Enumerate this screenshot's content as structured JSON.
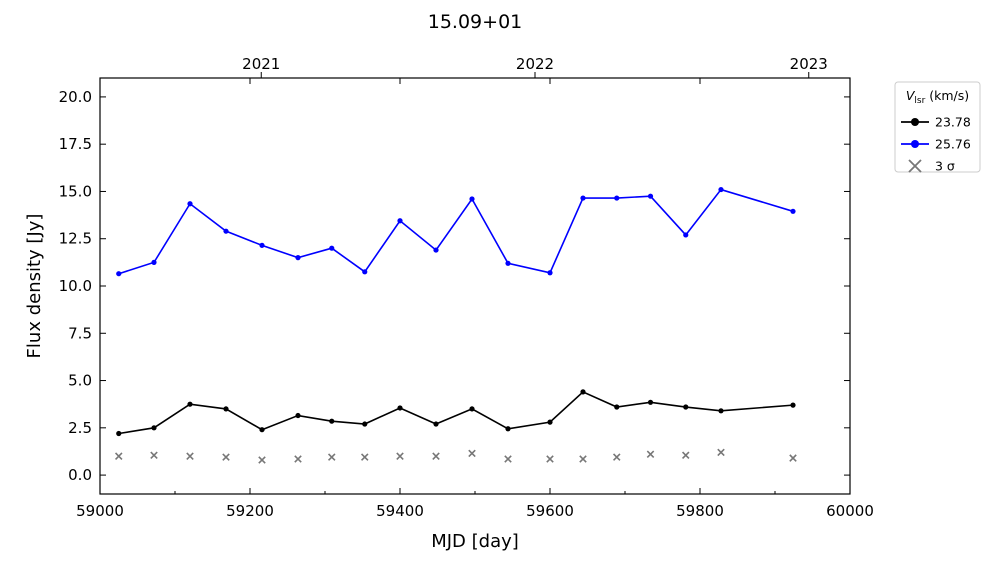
{
  "chart_data": {
    "type": "line",
    "title": "15.09+01",
    "xlabel": "MJD [day]",
    "ylabel": "Flux density [Jy]",
    "xlim": [
      59000,
      60000
    ],
    "ylim": [
      -1,
      21
    ],
    "x_ticks": [
      59000,
      59200,
      59400,
      59600,
      59800,
      60000
    ],
    "y_ticks": [
      0.0,
      2.5,
      5.0,
      7.5,
      10.0,
      12.5,
      15.0,
      17.5,
      20.0
    ],
    "y_tick_labels": [
      "0.0",
      "2.5",
      "5.0",
      "7.5",
      "10.0",
      "12.5",
      "15.0",
      "17.5",
      "20.0"
    ],
    "top_axis": {
      "labels": [
        "2021",
        "2022",
        "2023"
      ],
      "mjd": [
        59215,
        59580,
        59945
      ]
    },
    "grid": false,
    "legend": {
      "placement": "outside-top-right",
      "title_main": "V",
      "title_sub": "lsr",
      "title_unit": "(km/s)"
    },
    "series": [
      {
        "name": "23.78",
        "color": "#000000",
        "marker": "circle",
        "x": [
          59025,
          59072,
          59120,
          59168,
          59216,
          59264,
          59309,
          59353,
          59400,
          59448,
          59496,
          59544,
          59600,
          59644,
          59689,
          59734,
          59781,
          59828,
          59924
        ],
        "y": [
          2.2,
          2.5,
          3.75,
          3.5,
          2.4,
          3.15,
          2.85,
          2.7,
          3.55,
          2.7,
          3.5,
          2.45,
          2.8,
          4.4,
          3.6,
          3.85,
          3.6,
          3.4,
          3.7
        ]
      },
      {
        "name": "25.76",
        "color": "#0000ff",
        "marker": "circle",
        "x": [
          59025,
          59072,
          59120,
          59168,
          59216,
          59264,
          59309,
          59353,
          59400,
          59448,
          59496,
          59544,
          59600,
          59644,
          59689,
          59734,
          59781,
          59828,
          59924
        ],
        "y": [
          10.65,
          11.25,
          14.35,
          12.9,
          12.15,
          11.5,
          12.0,
          10.75,
          13.45,
          11.9,
          14.6,
          11.2,
          10.7,
          14.65,
          14.65,
          14.75,
          12.7,
          15.1,
          13.95
        ]
      },
      {
        "name": "3 σ",
        "color": "#777777",
        "marker": "x",
        "x": [
          59025,
          59072,
          59120,
          59168,
          59216,
          59264,
          59309,
          59353,
          59400,
          59448,
          59496,
          59544,
          59600,
          59644,
          59689,
          59734,
          59781,
          59828,
          59924
        ],
        "y": [
          1.0,
          1.05,
          1.0,
          0.95,
          0.8,
          0.85,
          0.95,
          0.95,
          1.0,
          1.0,
          1.15,
          0.85,
          0.85,
          0.85,
          0.95,
          1.1,
          1.05,
          1.2,
          0.9
        ]
      }
    ]
  }
}
